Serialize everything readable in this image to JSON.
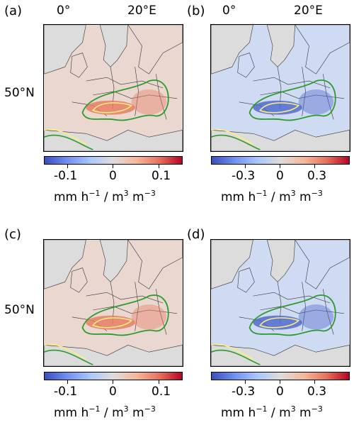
{
  "axes": {
    "lon_labels": [
      "0°",
      "20°E"
    ],
    "lat_labels": [
      "50°N"
    ]
  },
  "panels": [
    {
      "label": "(a)",
      "field": "positive",
      "colorbar": {
        "ticks": [
          "-0.1",
          "0",
          "0.1"
        ],
        "range": [
          -0.12,
          0.12
        ]
      }
    },
    {
      "label": "(b)",
      "field": "negative",
      "colorbar": {
        "ticks": [
          "-0.3",
          "0",
          "0.3"
        ],
        "range": [
          -0.6,
          0.6
        ]
      }
    },
    {
      "label": "(c)",
      "field": "positive",
      "colorbar": {
        "ticks": [
          "-0.1",
          "0",
          "0.1"
        ],
        "range": [
          -0.12,
          0.12
        ]
      }
    },
    {
      "label": "(d)",
      "field": "negative",
      "colorbar": {
        "ticks": [
          "-0.3",
          "0",
          "0.3"
        ],
        "range": [
          -0.6,
          0.6
        ]
      }
    }
  ],
  "colorbar_units": {
    "a": "mm h",
    "b": "−1",
    "c": " / m",
    "d": "3",
    "e": " m",
    "f": "−3"
  },
  "colors": {
    "ocean": "#d9d9d9",
    "land_positive": "#ead7cf",
    "land_negative": "#cfdaf3",
    "contour_green": "#2e9a2e",
    "contour_yellow": "#ffef7a",
    "alps_positive": "#e8795f",
    "alps_negative": "#4a64cc"
  }
}
